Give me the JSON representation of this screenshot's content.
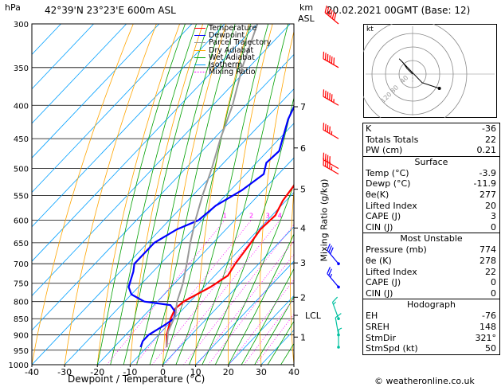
{
  "header": {
    "hpa_label": "hPa",
    "location": "42°39'N  23°23'E  600m  ASL",
    "km_label": "km",
    "asl_label": "ASL",
    "datetime": "20.02.2021  00GMT  (Base: 12)"
  },
  "footer": {
    "xlabel": "Dewpoint / Temperature (°C)",
    "copyright": "© weatheronline.co.uk"
  },
  "mixing_ratio_label": "Mixing Ratio (g/kg)",
  "legend": [
    {
      "label": "Temperature",
      "color": "#ff0000",
      "style": "solid"
    },
    {
      "label": "Dewpoint",
      "color": "#0000ff",
      "style": "solid"
    },
    {
      "label": "Parcel Trajectory",
      "color": "#999999",
      "style": "solid"
    },
    {
      "label": "Dry Adiabat",
      "color": "#ffa500",
      "style": "solid"
    },
    {
      "label": "Wet Adiabat",
      "color": "#00a000",
      "style": "solid"
    },
    {
      "label": "Isotherm",
      "color": "#00a0ff",
      "style": "solid"
    },
    {
      "label": "Mixing Ratio",
      "color": "#ff00ff",
      "style": "dotted"
    }
  ],
  "chart_data": {
    "type": "line",
    "title": "42°39'N  23°23'E  600m  ASL",
    "xlabel": "Dewpoint / Temperature (°C)",
    "ylabel": "hPa",
    "xlim": [
      -40,
      40
    ],
    "ylim": [
      1000,
      300
    ],
    "y_scale": "log",
    "x_ticks": [
      "-40",
      "-30",
      "-20",
      "-10",
      "0",
      "10",
      "20",
      "30",
      "40"
    ],
    "y_ticks": [
      "300",
      "350",
      "400",
      "450",
      "500",
      "550",
      "600",
      "650",
      "700",
      "750",
      "800",
      "850",
      "900",
      "950",
      "1000"
    ],
    "km_ticks": [
      {
        "label": "7",
        "p": 402
      },
      {
        "label": "6",
        "p": 465
      },
      {
        "label": "5",
        "p": 538
      },
      {
        "label": "4",
        "p": 617
      },
      {
        "label": "3",
        "p": 698
      },
      {
        "label": "2",
        "p": 788
      },
      {
        "label": "LCL",
        "p": 840
      },
      {
        "label": "1",
        "p": 907
      }
    ],
    "mixing_ratio_labels": [
      "1",
      "2",
      "3",
      "4",
      "6",
      "8",
      "10",
      "15",
      "20",
      "25"
    ],
    "mixing_ratio_values": [
      1,
      2,
      3,
      4,
      6,
      8,
      10,
      15,
      20,
      25
    ],
    "series": [
      {
        "name": "Temperature",
        "color": "#ff0000",
        "points": [
          [
            -3.9,
            940
          ],
          [
            -5.2,
            925
          ],
          [
            -7.5,
            900
          ],
          [
            -9.5,
            870
          ],
          [
            -11,
            850
          ],
          [
            -12.5,
            820
          ],
          [
            -12,
            800
          ],
          [
            -8,
            760
          ],
          [
            -6,
            730
          ],
          [
            -7.2,
            700
          ],
          [
            -8.5,
            650
          ],
          [
            -9.5,
            620
          ],
          [
            -9,
            590
          ],
          [
            -11,
            560
          ],
          [
            -12,
            530
          ],
          [
            -14.5,
            500
          ],
          [
            -17,
            470
          ],
          [
            -19.5,
            450
          ],
          [
            -22.5,
            420
          ],
          [
            -25.5,
            400
          ],
          [
            -28,
            380
          ],
          [
            -31,
            350
          ],
          [
            -35.5,
            320
          ],
          [
            -39,
            300
          ]
        ]
      },
      {
        "name": "Dewpoint",
        "color": "#0000ff",
        "points": [
          [
            -11.9,
            940
          ],
          [
            -13,
            920
          ],
          [
            -13,
            900
          ],
          [
            -11,
            870
          ],
          [
            -10,
            850
          ],
          [
            -11.5,
            830
          ],
          [
            -15,
            810
          ],
          [
            -24,
            800
          ],
          [
            -30,
            780
          ],
          [
            -33,
            760
          ],
          [
            -36,
            720
          ],
          [
            -38,
            700
          ],
          [
            -38,
            650
          ],
          [
            -35,
            620
          ],
          [
            -31,
            600
          ],
          [
            -30,
            570
          ],
          [
            -26.5,
            540
          ],
          [
            -24.5,
            510
          ],
          [
            -27,
            490
          ],
          [
            -26.5,
            470
          ],
          [
            -33,
            420
          ],
          [
            -35,
            400
          ],
          [
            -31,
            390
          ],
          [
            -39,
            375
          ],
          [
            -37,
            350
          ],
          [
            -39.5,
            300
          ]
        ]
      },
      {
        "name": "Parcel Trajectory",
        "color": "#999999",
        "points": [
          [
            -3.9,
            940
          ],
          [
            -8,
            890
          ],
          [
            -10.5,
            840
          ],
          [
            -14,
            800
          ],
          [
            -17.5,
            750
          ],
          [
            -22,
            700
          ],
          [
            -27,
            650
          ],
          [
            -32,
            600
          ],
          [
            -37,
            550
          ],
          [
            -42,
            500
          ],
          [
            -48,
            450
          ],
          [
            -54,
            400
          ],
          [
            -62,
            350
          ],
          [
            -70,
            300
          ]
        ]
      }
    ]
  },
  "hodograph": {
    "label": "kt",
    "rings": [
      "120",
      "80",
      "40"
    ],
    "points_uv": [
      [
        0,
        0
      ],
      [
        -6,
        6
      ],
      [
        -10,
        12
      ],
      [
        -14,
        16
      ],
      [
        10,
        -9
      ],
      [
        28,
        -15
      ]
    ],
    "storm_uv": [
      0,
      -8
    ]
  },
  "stats": {
    "top": [
      {
        "label": "K",
        "value": "-36"
      },
      {
        "label": "Totals Totals",
        "value": "22"
      },
      {
        "label": "PW (cm)",
        "value": "0.21"
      }
    ],
    "surface_title": "Surface",
    "surface": [
      {
        "label": "Temp (°C)",
        "value": "-3.9"
      },
      {
        "label": "Dewp (°C)",
        "value": "-11.9"
      },
      {
        "label": "θe(K)",
        "value": "277"
      },
      {
        "label": "Lifted Index",
        "value": "20"
      },
      {
        "label": "CAPE (J)",
        "value": "3"
      },
      {
        "label": "CIN (J)",
        "value": "0"
      }
    ],
    "unstable_title": "Most Unstable",
    "unstable": [
      {
        "label": "Pressure (mb)",
        "value": "774"
      },
      {
        "label": "θe (K)",
        "value": "278"
      },
      {
        "label": "Lifted Index",
        "value": "22"
      },
      {
        "label": "CAPE (J)",
        "value": "0"
      },
      {
        "label": "CIN (J)",
        "value": "0"
      }
    ],
    "hodo_title": "Hodograph",
    "hodo": [
      {
        "label": "EH",
        "value": "-76"
      },
      {
        "label": "SREH",
        "value": "148"
      },
      {
        "label": "StmDir",
        "value": "321°"
      },
      {
        "label": "StmSpd (kt)",
        "value": "50"
      }
    ]
  },
  "wind_barbs": [
    {
      "p": 300,
      "dir": 310,
      "spd": 60
    },
    {
      "p": 350,
      "dir": 300,
      "spd": 60
    },
    {
      "p": 400,
      "dir": 300,
      "spd": 55
    },
    {
      "p": 450,
      "dir": 300,
      "spd": 45
    },
    {
      "p": 500,
      "dir": 300,
      "spd": 40
    },
    {
      "p": 510,
      "dir": 300,
      "spd": 45
    },
    {
      "p": 700,
      "dir": 320,
      "spd": 30
    },
    {
      "p": 760,
      "dir": 320,
      "spd": 25
    },
    {
      "p": 850,
      "dir": 340,
      "spd": 15
    },
    {
      "p": 900,
      "dir": 350,
      "spd": 10
    },
    {
      "p": 940,
      "dir": 0,
      "spd": 5
    }
  ]
}
